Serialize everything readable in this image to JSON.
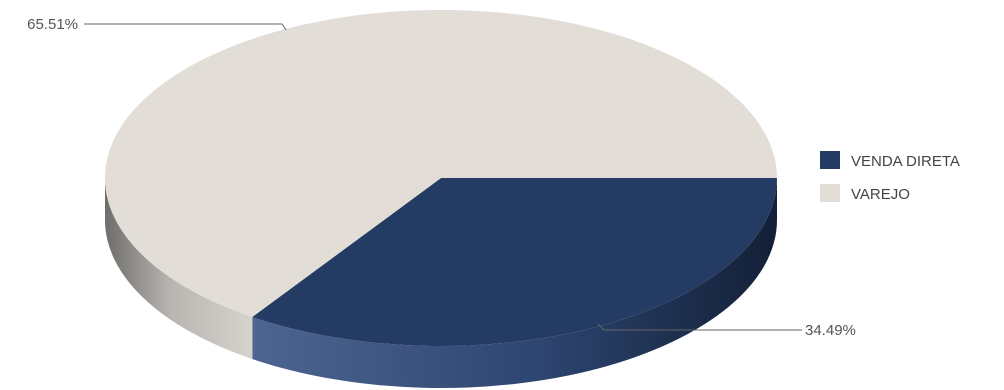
{
  "chart_data": {
    "type": "pie",
    "title": "",
    "legend_position": "right",
    "slices": [
      {
        "label": "VENDA DIRETA",
        "value": 34.49,
        "display": "34.49%",
        "color": "#243c64"
      },
      {
        "label": "VAREJO",
        "value": 65.51,
        "display": "65.51%",
        "color": "#e2ddd6"
      }
    ]
  }
}
